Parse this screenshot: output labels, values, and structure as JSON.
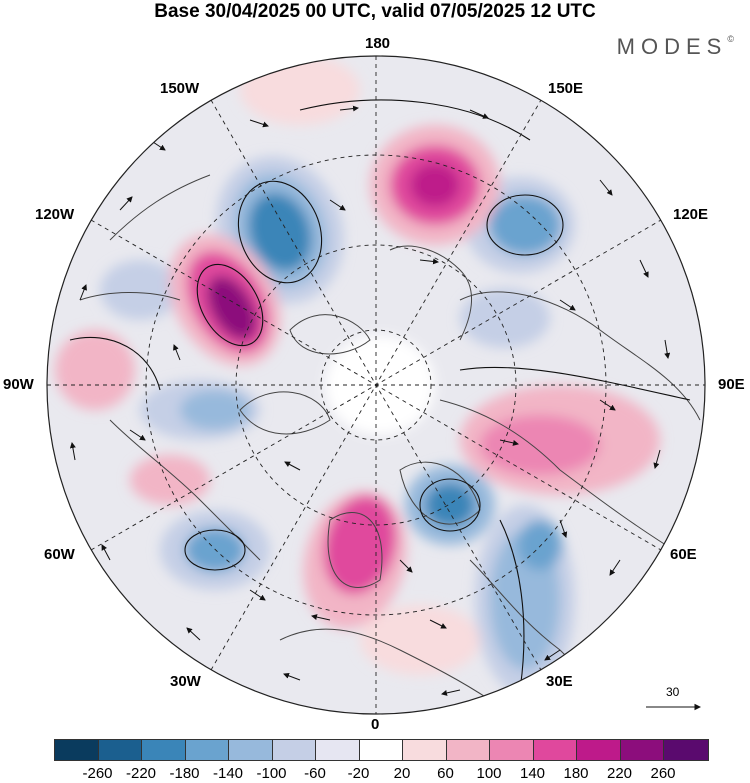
{
  "header": {
    "title": "Base 30/04/2025 00 UTC, valid 07/05/2025 12 UTC",
    "logo_text": "MODES",
    "logo_mark": "©"
  },
  "map": {
    "projection": "north-polar-stereographic",
    "ocean_color": "#ffffff",
    "land_outline_color": "#444444",
    "longitude_labels": {
      "top": "180",
      "bottom": "0",
      "left": "90W",
      "right": "90E",
      "ul1": "150W",
      "ul2": "120W",
      "ur1": "150E",
      "ur2": "120E",
      "ll1": "60W",
      "ll2": "30W",
      "lr1": "60E",
      "lr2": "30E"
    },
    "reference_vector_label": "30"
  },
  "colorbar": {
    "colors": [
      "#0a3b5e",
      "#1b5f8f",
      "#3a85b8",
      "#6aa3cf",
      "#97b9dc",
      "#c5cfe6",
      "#e6e6f2",
      "#ffffff",
      "#f8dcde",
      "#f2b5c6",
      "#ec86b3",
      "#e0489d",
      "#be1a8a",
      "#8c0d7c",
      "#5a0a6e"
    ],
    "ticks": [
      "-260",
      "-220",
      "-180",
      "-140",
      "-100",
      "-60",
      "-20",
      "20",
      "60",
      "100",
      "140",
      "180",
      "220",
      "260"
    ]
  }
}
